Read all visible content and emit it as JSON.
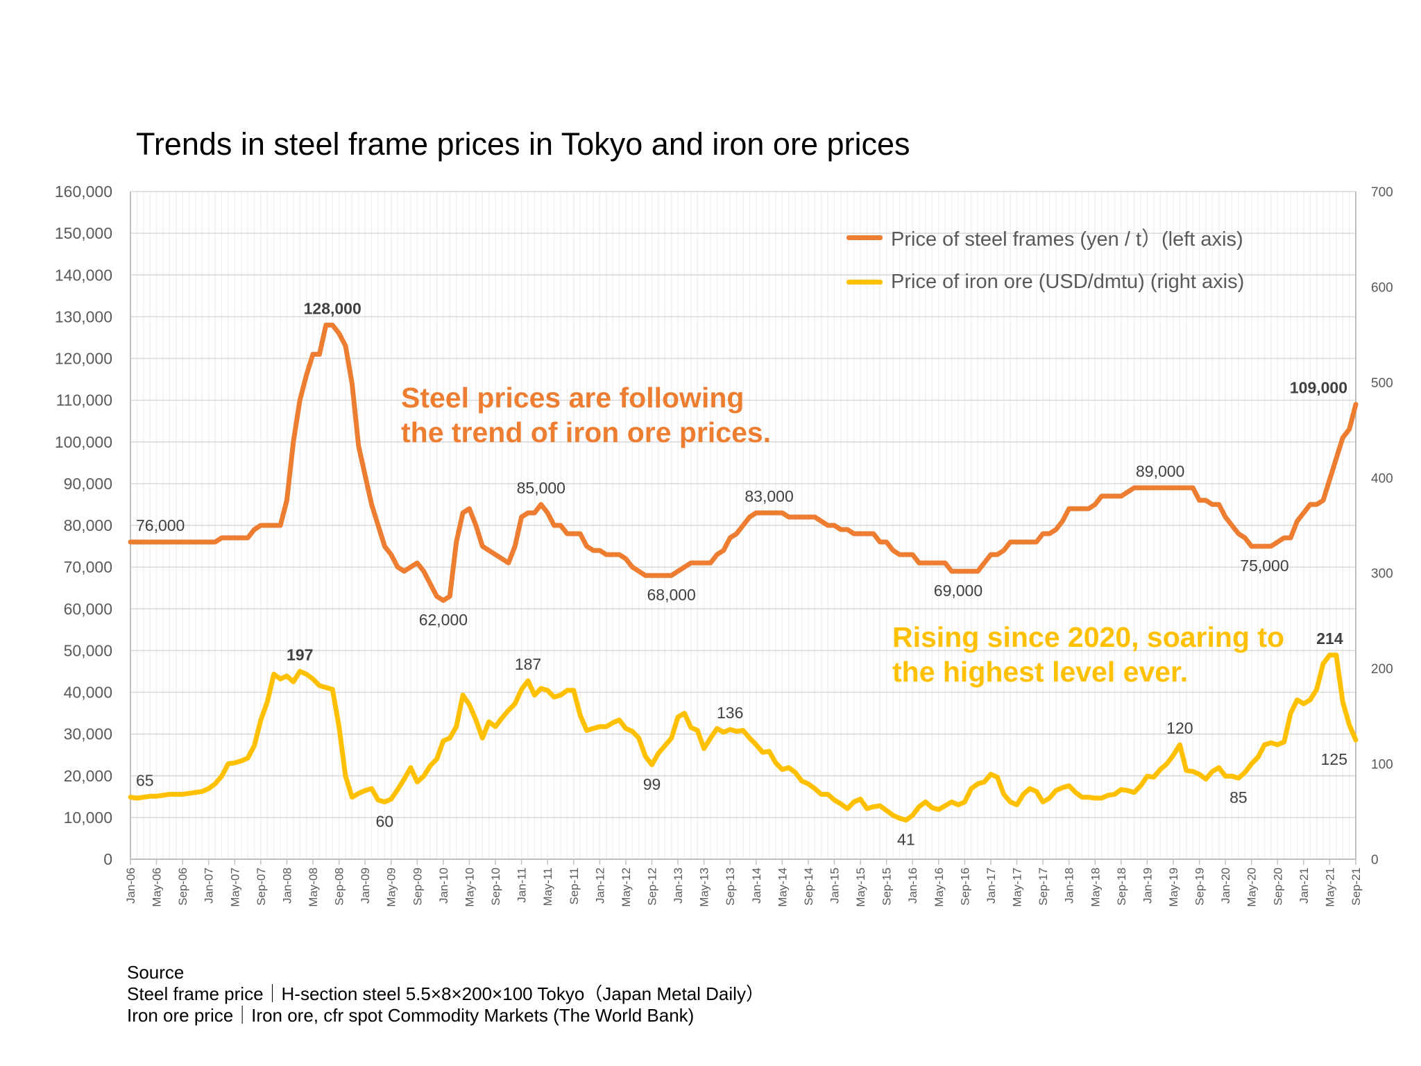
{
  "title": "Trends in steel frame prices in Tokyo and iron ore prices",
  "legend": {
    "items": [
      {
        "label": "Price of steel frames (yen / t）(left axis)",
        "color": "#ED7D31"
      },
      {
        "label": "Price of iron ore (USD/dmtu) (right axis)",
        "color": "#FFC000"
      }
    ],
    "placement": "top-right"
  },
  "annotations": {
    "steel": {
      "line1": "Steel prices are following",
      "line2": "the trend of iron ore prices.",
      "color": "#ED7D31"
    },
    "iron": {
      "line1": "Rising since 2020, soaring to",
      "line2": "the highest level ever.",
      "color": "#FFC000"
    }
  },
  "source": {
    "heading": "Source",
    "line1": "Steel frame price｜H-section steel 5.5×8×200×100 Tokyo（Japan Metal Daily）",
    "line2": "Iron ore price｜Iron ore, cfr spot  Commodity Markets (The World Bank)"
  },
  "chart_data": {
    "type": "line",
    "title": "Trends in steel frame prices in Tokyo and iron ore prices",
    "x_range": [
      "Jan-06",
      "Sep-21"
    ],
    "x_frequency": "monthly",
    "x_tick_labels": [
      "Jan-06",
      "May-06",
      "Sep-06",
      "Jan-07",
      "May-07",
      "Sep-07",
      "Jan-08",
      "May-08",
      "Sep-08",
      "Jan-09",
      "May-09",
      "Sep-09",
      "Jan-10",
      "May-10",
      "Sep-10",
      "Jan-11",
      "May-11",
      "Sep-11",
      "Jan-12",
      "May-12",
      "Sep-12",
      "Jan-13",
      "May-13",
      "Sep-13",
      "Jan-14",
      "May-14",
      "Sep-14",
      "Jan-15",
      "May-15",
      "Sep-15",
      "Jan-16",
      "May-16",
      "Sep-16",
      "Jan-17",
      "May-17",
      "Sep-17",
      "Jan-18",
      "May-18",
      "Sep-18",
      "Jan-19",
      "May-19",
      "Sep-19",
      "Jan-20",
      "May-20",
      "Sep-20",
      "Jan-21",
      "May-21",
      "Sep-21"
    ],
    "y_left": {
      "range": [
        0,
        160000
      ],
      "step": 10000,
      "tick_labels": [
        "0",
        "10,000",
        "20,000",
        "30,000",
        "40,000",
        "50,000",
        "60,000",
        "70,000",
        "80,000",
        "90,000",
        "100,000",
        "110,000",
        "120,000",
        "130,000",
        "140,000",
        "150,000",
        "160,000"
      ]
    },
    "y_right": {
      "range": [
        0,
        700
      ],
      "step": 100,
      "tick_labels": [
        "0",
        "100",
        "200",
        "300",
        "400",
        "500",
        "600",
        "700"
      ]
    },
    "grid": true,
    "series": [
      {
        "name": "Price of steel frames (yen / t）(left axis)",
        "axis": "left",
        "color": "#ED7D31",
        "values": [
          76000,
          76000,
          76000,
          76000,
          76000,
          76000,
          76000,
          76000,
          76000,
          76000,
          76000,
          76000,
          76000,
          76000,
          77000,
          77000,
          77000,
          77000,
          77000,
          79000,
          80000,
          80000,
          80000,
          80000,
          86000,
          100000,
          110000,
          116000,
          121000,
          121000,
          128000,
          128000,
          126000,
          123000,
          114000,
          99000,
          92000,
          85000,
          80000,
          75000,
          73000,
          70000,
          69000,
          70000,
          71000,
          69000,
          66000,
          63000,
          62000,
          63000,
          76000,
          83000,
          84000,
          80000,
          75000,
          74000,
          73000,
          72000,
          71000,
          75000,
          82000,
          83000,
          83000,
          85000,
          83000,
          80000,
          80000,
          78000,
          78000,
          78000,
          75000,
          74000,
          74000,
          73000,
          73000,
          73000,
          72000,
          70000,
          69000,
          68000,
          68000,
          68000,
          68000,
          68000,
          69000,
          70000,
          71000,
          71000,
          71000,
          71000,
          73000,
          74000,
          77000,
          78000,
          80000,
          82000,
          83000,
          83000,
          83000,
          83000,
          83000,
          82000,
          82000,
          82000,
          82000,
          82000,
          81000,
          80000,
          80000,
          79000,
          79000,
          78000,
          78000,
          78000,
          78000,
          76000,
          76000,
          74000,
          73000,
          73000,
          73000,
          71000,
          71000,
          71000,
          71000,
          71000,
          69000,
          69000,
          69000,
          69000,
          69000,
          71000,
          73000,
          73000,
          74000,
          76000,
          76000,
          76000,
          76000,
          76000,
          78000,
          78000,
          79000,
          81000,
          84000,
          84000,
          84000,
          84000,
          85000,
          87000,
          87000,
          87000,
          87000,
          88000,
          89000,
          89000,
          89000,
          89000,
          89000,
          89000,
          89000,
          89000,
          89000,
          89000,
          86000,
          86000,
          85000,
          85000,
          82000,
          80000,
          78000,
          77000,
          75000,
          75000,
          75000,
          75000,
          76000,
          77000,
          77000,
          81000,
          83000,
          85000,
          85000,
          86000,
          91000,
          96000,
          101000,
          103000,
          109000
        ],
        "data_labels": [
          {
            "x": "Jan-06",
            "text": "76,000",
            "position": "above",
            "bold": false
          },
          {
            "x": "Aug-08",
            "text": "128,000",
            "position": "above",
            "bold": true
          },
          {
            "x": "Jan-10",
            "text": "62,000",
            "position": "below",
            "bold": false
          },
          {
            "x": "Apr-11",
            "text": "85,000",
            "position": "above",
            "bold": false
          },
          {
            "x": "Dec-12",
            "text": "68,000",
            "position": "below",
            "bold": false
          },
          {
            "x": "Mar-14",
            "text": "83,000",
            "position": "above",
            "bold": false
          },
          {
            "x": "Aug-16",
            "text": "69,000",
            "position": "below",
            "bold": false
          },
          {
            "x": "Mar-19",
            "text": "89,000",
            "position": "above",
            "bold": false
          },
          {
            "x": "Jul-20",
            "text": "75,000",
            "position": "below",
            "bold": false
          },
          {
            "x": "Sep-21",
            "text": "109,000",
            "position": "above",
            "bold": true
          }
        ]
      },
      {
        "name": "Price of iron ore (USD/dmtu) (right axis)",
        "axis": "right",
        "color": "#FFC000",
        "values": [
          65,
          64,
          65,
          66,
          66,
          67,
          68,
          68,
          68,
          69,
          70,
          71,
          74,
          79,
          87,
          100,
          101,
          103,
          106,
          119,
          146,
          165,
          194,
          189,
          192,
          186,
          197,
          194,
          189,
          182,
          180,
          178,
          139,
          87,
          65,
          69,
          72,
          74,
          62,
          60,
          63,
          73,
          84,
          96,
          81,
          87,
          98,
          105,
          124,
          127,
          139,
          172,
          162,
          146,
          127,
          144,
          139,
          148,
          156,
          163,
          178,
          187,
          172,
          179,
          177,
          170,
          172,
          177,
          177,
          151,
          135,
          137,
          139,
          139,
          143,
          146,
          137,
          134,
          127,
          108,
          99,
          111,
          119,
          127,
          149,
          153,
          138,
          135,
          116,
          127,
          137,
          133,
          136,
          134,
          135,
          127,
          120,
          112,
          113,
          101,
          94,
          96,
          91,
          82,
          79,
          74,
          68,
          68,
          62,
          58,
          53,
          60,
          63,
          53,
          55,
          56,
          51,
          46,
          43,
          41,
          46,
          55,
          60,
          54,
          52,
          56,
          60,
          57,
          60,
          74,
          79,
          81,
          89,
          86,
          68,
          60,
          57,
          68,
          74,
          71,
          60,
          64,
          72,
          75,
          77,
          70,
          65,
          65,
          64,
          64,
          67,
          68,
          73,
          72,
          70,
          77,
          87,
          86,
          94,
          100,
          109,
          120,
          93,
          92,
          89,
          84,
          92,
          96,
          87,
          87,
          85,
          91,
          100,
          107,
          120,
          122,
          120,
          123,
          153,
          167,
          163,
          167,
          178,
          205,
          214,
          214,
          165,
          141,
          125
        ],
        "data_labels": [
          {
            "x": "Jan-06",
            "text": "65",
            "position": "above",
            "bold": false
          },
          {
            "x": "Mar-08",
            "text": "197",
            "position": "above",
            "bold": true
          },
          {
            "x": "Apr-09",
            "text": "60",
            "position": "below",
            "bold": false
          },
          {
            "x": "Feb-11",
            "text": "187",
            "position": "above",
            "bold": false
          },
          {
            "x": "Sep-12",
            "text": "99",
            "position": "below",
            "bold": false
          },
          {
            "x": "Sep-13",
            "text": "136",
            "position": "above",
            "bold": false
          },
          {
            "x": "Dec-15",
            "text": "41",
            "position": "below",
            "bold": false
          },
          {
            "x": "Jun-19",
            "text": "120",
            "position": "above",
            "bold": false
          },
          {
            "x": "Mar-20",
            "text": "85",
            "position": "below",
            "bold": false
          },
          {
            "x": "May-21",
            "text": "214",
            "position": "above",
            "bold": true
          },
          {
            "x": "Sep-21",
            "text": "125",
            "position": "below",
            "bold": false
          }
        ]
      }
    ]
  }
}
